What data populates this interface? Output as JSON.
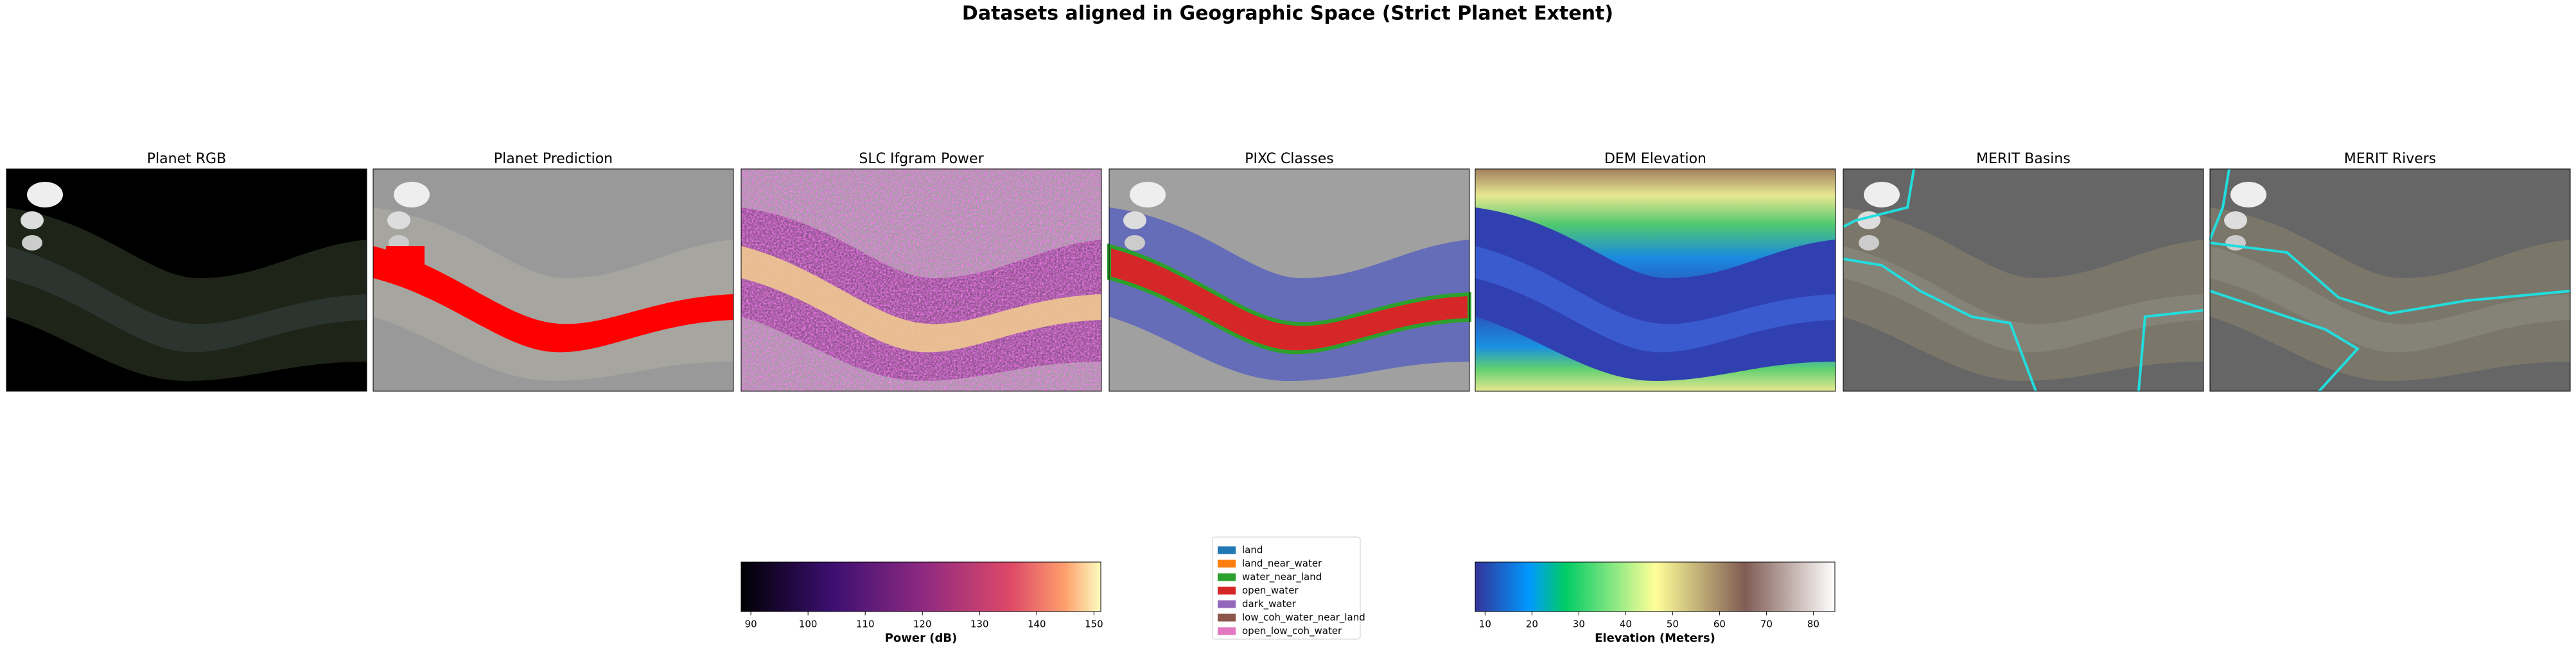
{
  "title": "Datasets aligned in Geographic Space (Strict Planet Extent)",
  "panels": [
    {
      "title": "Planet RGB"
    },
    {
      "title": "Planet Prediction"
    },
    {
      "title": "SLC Ifgram Power"
    },
    {
      "title": "PIXC Classes"
    },
    {
      "title": "DEM Elevation"
    },
    {
      "title": "MERIT Basins"
    },
    {
      "title": "MERIT Rivers"
    }
  ],
  "colorbars": [
    {
      "label": "Power (dB)",
      "colormap": "magma",
      "xlim": [
        88.3,
        151.2
      ],
      "xticks": [
        90,
        100,
        110,
        120,
        130,
        140,
        150
      ]
    },
    {
      "label": "Elevation (Meters)",
      "colormap": "terrain",
      "xlim": [
        7.9,
        84.6
      ],
      "xticks": [
        10,
        20,
        30,
        40,
        50,
        60,
        70,
        80
      ]
    }
  ],
  "legend": {
    "items": [
      {
        "name": "land",
        "color": "#1f77b4"
      },
      {
        "name": "land_near_water",
        "color": "#ff7f0e"
      },
      {
        "name": "water_near_land",
        "color": "#2ca02c"
      },
      {
        "name": "open_water",
        "color": "#d62728"
      },
      {
        "name": "dark_water",
        "color": "#9467bd"
      },
      {
        "name": "low_coh_water_near_land",
        "color": "#8c564b"
      },
      {
        "name": "open_low_coh_water",
        "color": "#e377c2"
      }
    ]
  }
}
